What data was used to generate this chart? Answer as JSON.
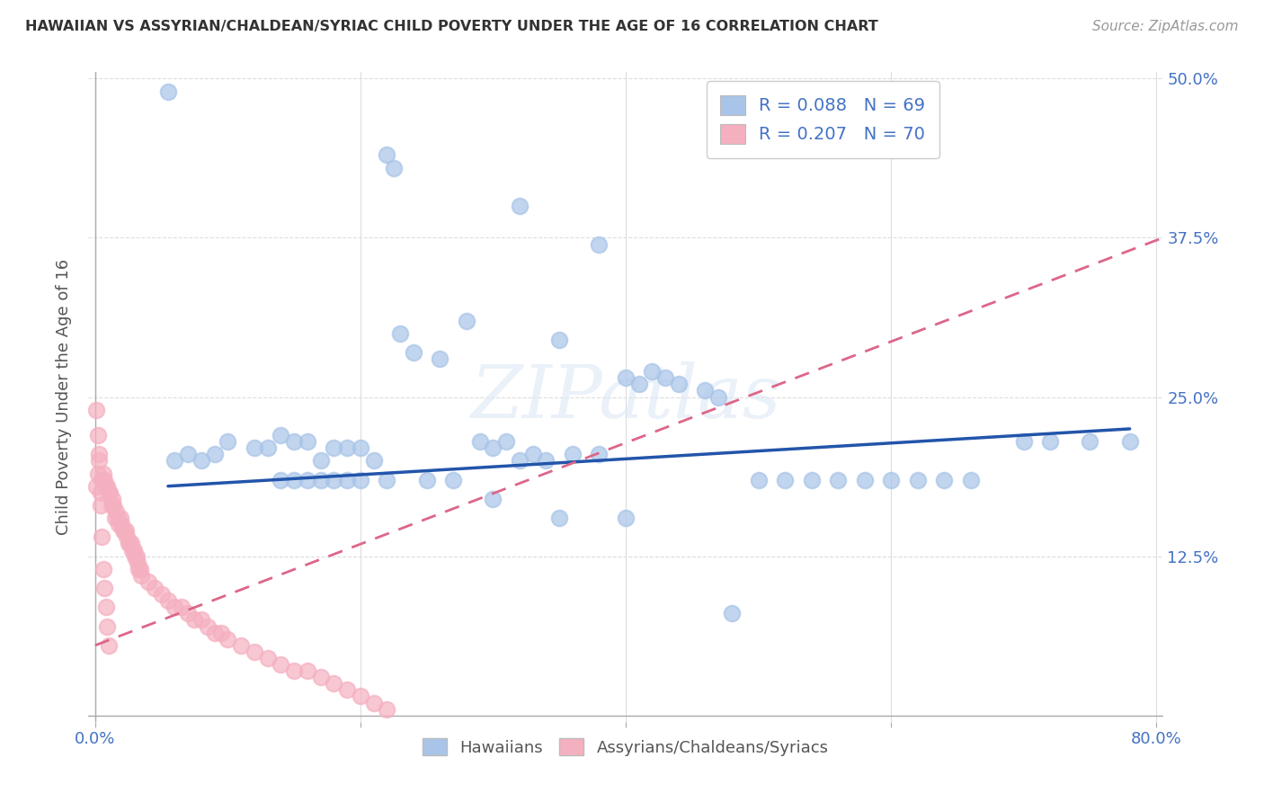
{
  "title": "HAWAIIAN VS ASSYRIAN/CHALDEAN/SYRIAC CHILD POVERTY UNDER THE AGE OF 16 CORRELATION CHART",
  "source": "Source: ZipAtlas.com",
  "ylabel": "Child Poverty Under the Age of 16",
  "xlim": [
    -0.005,
    0.805
  ],
  "ylim": [
    -0.005,
    0.505
  ],
  "hawaiian_color": "#a8c4e8",
  "assyrian_color": "#f5b0c0",
  "hawaiian_line_color": "#2255aa",
  "assyrian_line_color": "#dd6688",
  "background_color": "#ffffff",
  "grid_color": "#dddddd",
  "hawaiian_x": [
    0.055,
    0.22,
    0.225,
    0.32,
    0.38,
    0.28,
    0.35,
    0.4,
    0.42,
    0.44,
    0.46,
    0.43,
    0.47,
    0.41,
    0.23,
    0.26,
    0.24,
    0.3,
    0.32,
    0.29,
    0.31,
    0.34,
    0.33,
    0.36,
    0.38,
    0.1,
    0.12,
    0.13,
    0.14,
    0.15,
    0.16,
    0.17,
    0.18,
    0.19,
    0.2,
    0.08,
    0.09,
    0.07,
    0.06,
    0.5,
    0.52,
    0.54,
    0.56,
    0.58,
    0.6,
    0.62,
    0.64,
    0.66,
    0.7,
    0.72,
    0.75,
    0.78,
    0.48,
    0.21,
    0.22,
    0.2,
    0.19,
    0.18,
    0.17,
    0.16,
    0.15,
    0.14,
    0.25,
    0.27,
    0.3,
    0.35,
    0.4
  ],
  "hawaiian_y": [
    0.49,
    0.44,
    0.43,
    0.4,
    0.37,
    0.31,
    0.295,
    0.265,
    0.27,
    0.26,
    0.255,
    0.265,
    0.25,
    0.26,
    0.3,
    0.28,
    0.285,
    0.21,
    0.2,
    0.215,
    0.215,
    0.2,
    0.205,
    0.205,
    0.205,
    0.215,
    0.21,
    0.21,
    0.22,
    0.215,
    0.215,
    0.2,
    0.21,
    0.21,
    0.21,
    0.2,
    0.205,
    0.205,
    0.2,
    0.185,
    0.185,
    0.185,
    0.185,
    0.185,
    0.185,
    0.185,
    0.185,
    0.185,
    0.215,
    0.215,
    0.215,
    0.215,
    0.08,
    0.2,
    0.185,
    0.185,
    0.185,
    0.185,
    0.185,
    0.185,
    0.185,
    0.185,
    0.185,
    0.185,
    0.17,
    0.155,
    0.155
  ],
  "assyrian_x": [
    0.001,
    0.002,
    0.003,
    0.004,
    0.005,
    0.006,
    0.007,
    0.008,
    0.009,
    0.01,
    0.011,
    0.012,
    0.013,
    0.014,
    0.015,
    0.016,
    0.017,
    0.018,
    0.019,
    0.02,
    0.021,
    0.022,
    0.023,
    0.024,
    0.025,
    0.026,
    0.027,
    0.028,
    0.029,
    0.03,
    0.031,
    0.032,
    0.033,
    0.034,
    0.035,
    0.04,
    0.045,
    0.05,
    0.055,
    0.06,
    0.065,
    0.07,
    0.075,
    0.08,
    0.085,
    0.09,
    0.095,
    0.1,
    0.11,
    0.12,
    0.13,
    0.14,
    0.15,
    0.16,
    0.17,
    0.18,
    0.19,
    0.2,
    0.21,
    0.22,
    0.001,
    0.002,
    0.003,
    0.004,
    0.005,
    0.006,
    0.007,
    0.008,
    0.009,
    0.01
  ],
  "assyrian_y": [
    0.18,
    0.19,
    0.2,
    0.175,
    0.185,
    0.19,
    0.185,
    0.18,
    0.18,
    0.175,
    0.175,
    0.165,
    0.17,
    0.165,
    0.155,
    0.16,
    0.155,
    0.15,
    0.155,
    0.15,
    0.145,
    0.145,
    0.145,
    0.14,
    0.135,
    0.135,
    0.135,
    0.13,
    0.13,
    0.125,
    0.125,
    0.12,
    0.115,
    0.115,
    0.11,
    0.105,
    0.1,
    0.095,
    0.09,
    0.085,
    0.085,
    0.08,
    0.075,
    0.075,
    0.07,
    0.065,
    0.065,
    0.06,
    0.055,
    0.05,
    0.045,
    0.04,
    0.035,
    0.035,
    0.03,
    0.025,
    0.02,
    0.015,
    0.01,
    0.005,
    0.24,
    0.22,
    0.205,
    0.165,
    0.14,
    0.115,
    0.1,
    0.085,
    0.07,
    0.055
  ],
  "hawaiian_trend_x": [
    0.055,
    0.78
  ],
  "hawaiian_trend_y": [
    0.18,
    0.225
  ],
  "assyrian_trend_x": [
    0.0,
    0.805
  ],
  "assyrian_trend_y": [
    0.055,
    0.375
  ]
}
